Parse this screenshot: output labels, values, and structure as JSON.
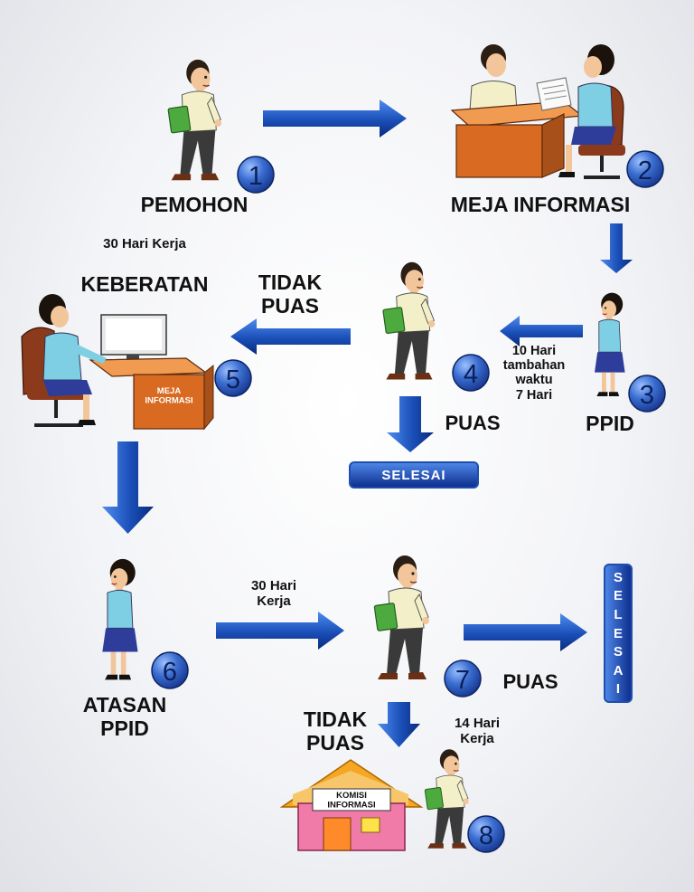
{
  "actors": {
    "pemohon": "PEMOHON",
    "meja_informasi": "MEJA INFORMASI",
    "ppid": "PPID",
    "atasan_ppid": "ATASAN\nPPID"
  },
  "steps": [
    "1",
    "2",
    "3",
    "4",
    "5",
    "6",
    "7",
    "8"
  ],
  "notes": {
    "hari_kerja_30_top": "30 Hari Kerja",
    "keberatan": "KEBERATAN",
    "tidak_puas_1": "TIDAK\nPUAS",
    "tambahan": "10 Hari\ntambahan\nwaktu\n7 Hari",
    "puas_1": "PUAS",
    "hari_kerja_30_mid": "30 Hari\nKerja",
    "puas_2": "PUAS",
    "tidak_puas_2": "TIDAK\nPUAS",
    "hari_kerja_14": "14 Hari\nKerja"
  },
  "signs": {
    "meja_informasi_desk": "MEJA\nINFORMASI",
    "komisi_informasi": "KOMISI\nINFORMASI"
  },
  "selesai": {
    "horizontal": "SELESAI",
    "vertical": [
      "S",
      "E",
      "L",
      "E",
      "S",
      "A",
      "I"
    ]
  },
  "colors": {
    "arrow_light": "#3a78e0",
    "arrow_dark": "#0b2f8c",
    "badge_fill": "#2a55b8",
    "desk": "#d86a22",
    "shirt_man": "#f3f0c9",
    "shirt_woman": "#7ecfe3",
    "skirt": "#2e3c9a",
    "folder": "#4caa3e",
    "house_wall": "#f07aa8",
    "house_roof": "#f5a623"
  }
}
